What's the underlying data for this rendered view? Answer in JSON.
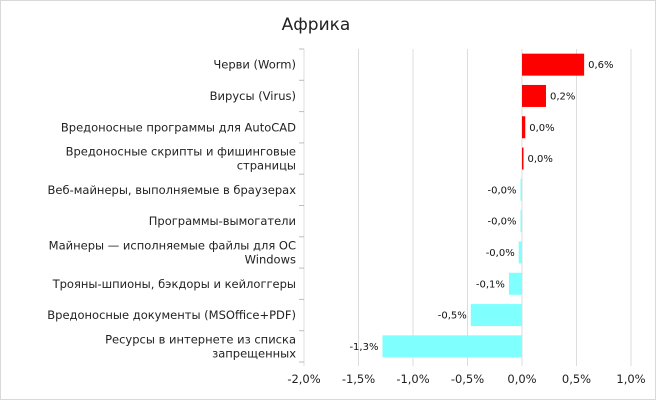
{
  "chart_data": {
    "type": "bar",
    "orientation": "horizontal",
    "title": "Африка",
    "xlabel": "",
    "ylabel": "",
    "xlim": [
      -2.0,
      1.0
    ],
    "xticks": [
      -2.0,
      -1.5,
      -1.0,
      -0.5,
      0.0,
      0.5,
      1.0
    ],
    "xtick_labels": [
      "-2,0%",
      "-1,5%",
      "-1,0%",
      "-0,5%",
      "0,0%",
      "0,5%",
      "1,0%"
    ],
    "grid": "vertical",
    "legend": "none",
    "categories": [
      "Черви (Worm)",
      "Вирусы (Virus)",
      "Вредоносные программы для AutoCAD",
      "Вредоносные скрипты и фишинговые страницы",
      "Веб-майнеры, выполняемые в браузерах",
      "Программы-вымогатели",
      "Майнеры — исполняемые файлы для ОС Windows",
      "Трояны-шпионы, бэкдоры и кейлоггеры",
      "Вредоносные документы (MSOffice+PDF)",
      "Ресурсы в интернете из списка запрещенных"
    ],
    "category_lines": [
      [
        "Черви (Worm)"
      ],
      [
        "Вирусы (Virus)"
      ],
      [
        "Вредоносные программы для AutoCAD"
      ],
      [
        "Вредоносные скрипты и фишинговые",
        "страницы"
      ],
      [
        "Веб-майнеры, выполняемые в браузерах"
      ],
      [
        "Программы-вымогатели"
      ],
      [
        "Майнеры — исполняемые файлы для ОС",
        "Windows"
      ],
      [
        "Трояны-шпионы, бэкдоры и кейлоггеры"
      ],
      [
        "Вредоносные документы (MSOffice+PDF)"
      ],
      [
        "Ресурсы в интернете из списка",
        "запрещенных"
      ]
    ],
    "values": [
      0.57,
      0.22,
      0.03,
      0.01,
      -0.005,
      -0.01,
      -0.03,
      -0.12,
      -0.47,
      -1.28
    ],
    "value_labels": [
      "0,6%",
      "0,2%",
      "0,0%",
      "0,0%",
      "-0,0%",
      "-0,0%",
      "-0,0%",
      "-0,1%",
      "-0,5%",
      "-1,3%"
    ],
    "colors": {
      "positive": "#ff0000",
      "negative": "#80ffff"
    }
  }
}
